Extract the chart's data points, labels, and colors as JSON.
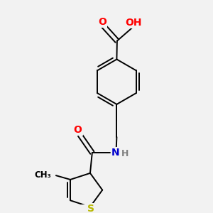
{
  "background_color": "#f2f2f2",
  "atom_colors": {
    "C": "#000000",
    "H": "#808080",
    "N": "#0000cd",
    "O": "#ff0000",
    "S": "#b8b800"
  },
  "bond_color": "#000000",
  "bond_width": 1.4,
  "figsize": [
    3.0,
    3.0
  ],
  "dpi": 100
}
